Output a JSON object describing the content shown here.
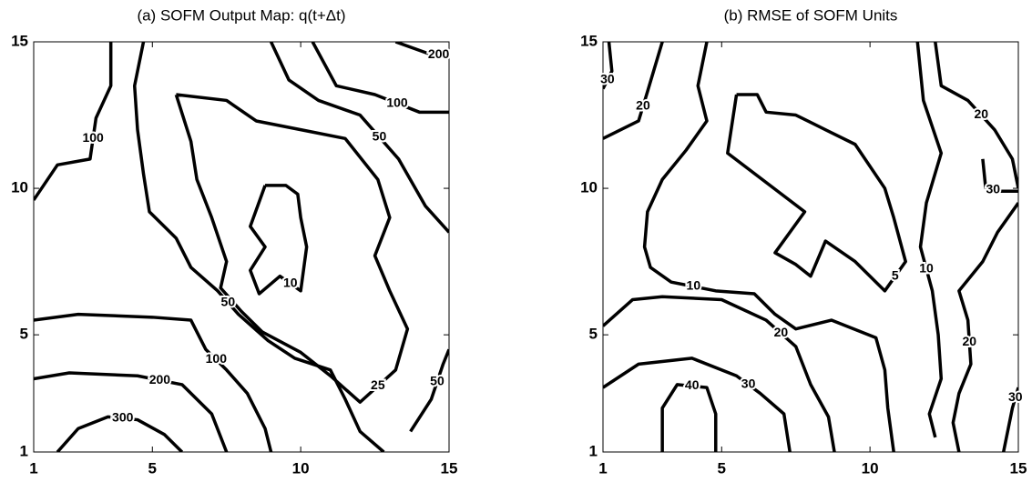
{
  "chart_data": [
    {
      "type": "contour",
      "title": "(a) SOFM Output Map: q(t+Δt)",
      "xlim": [
        1,
        15
      ],
      "ylim": [
        1,
        15
      ],
      "xticks": [
        1,
        5,
        10,
        15
      ],
      "yticks": [
        1,
        5,
        10,
        15
      ],
      "contours": [
        {
          "level": 100,
          "x": [
            1,
            1.8,
            2.9,
            3.1,
            3.6,
            3.6
          ],
          "y": [
            9.6,
            10.8,
            11,
            12.4,
            13.5,
            15
          ]
        },
        {
          "level": 50,
          "x": [
            4.7,
            4.4,
            4.5,
            4.7,
            4.9,
            5.8,
            6.3,
            7.2,
            7.9,
            8.9,
            9.8,
            11,
            11.5,
            12,
            12.8
          ],
          "y": [
            15,
            13.5,
            12,
            10.5,
            9.2,
            8.3,
            7.3,
            6.5,
            5.7,
            4.8,
            4.2,
            3.8,
            2.8,
            1.7,
            1
          ]
        },
        {
          "level": 50,
          "x": [
            9,
            9.6,
            10.6,
            12,
            13.3,
            14.2,
            15
          ],
          "y": [
            15,
            13.7,
            13,
            12.5,
            11,
            9.4,
            8.5
          ]
        },
        {
          "level": 100,
          "x": [
            10.4,
            11.2,
            12.5,
            14,
            15
          ],
          "y": [
            15,
            13.5,
            13.2,
            12.6,
            12.6
          ]
        },
        {
          "level": 200,
          "x": [
            13.2,
            14.3,
            15
          ],
          "y": [
            15,
            14.6,
            14.5
          ]
        },
        {
          "level": 25,
          "x": [
            5.8,
            7.5,
            8.5,
            10,
            11.5,
            12.6,
            13,
            12.5,
            13,
            13.6,
            13.2,
            12,
            11,
            10,
            8.7,
            8,
            7.3,
            7.5,
            7,
            6.5,
            6.3,
            5.8
          ],
          "y": [
            13.2,
            13,
            12.3,
            12,
            11.7,
            10.3,
            9,
            7.7,
            6.5,
            5.2,
            3.8,
            2.7,
            3.6,
            4.4,
            5.1,
            5.8,
            6.6,
            7.5,
            9,
            10.3,
            11.6,
            13.2
          ]
        },
        {
          "level": 10,
          "x": [
            8.8,
            9.5,
            9.9,
            10,
            10.2,
            10,
            9.3,
            8.6,
            8.3,
            8.8,
            8.3,
            8.8
          ],
          "y": [
            10.1,
            10.1,
            9.8,
            9,
            8,
            6.5,
            7,
            6.4,
            7.2,
            8,
            8.7,
            10.1
          ]
        },
        {
          "level": 100,
          "x": [
            1,
            2.5,
            5,
            6.3,
            6.8,
            7.5,
            8.2,
            8.8,
            9
          ],
          "y": [
            5.5,
            5.7,
            5.6,
            5.5,
            4.5,
            3.8,
            3,
            1.8,
            1
          ]
        },
        {
          "level": 200,
          "x": [
            1,
            2.2,
            4.5,
            6,
            7,
            7.5
          ],
          "y": [
            3.5,
            3.7,
            3.6,
            3.3,
            2.3,
            1
          ]
        },
        {
          "level": 300,
          "x": [
            1.8,
            2.5,
            3.5,
            4.5,
            5.4,
            6
          ],
          "y": [
            1,
            1.8,
            2.2,
            2.1,
            1.6,
            1
          ]
        },
        {
          "level": 50,
          "x": [
            13.7,
            14.4,
            14.8,
            15
          ],
          "y": [
            1.7,
            2.8,
            4,
            4.5
          ]
        }
      ]
    },
    {
      "type": "contour",
      "title": "(b) RMSE of SOFM Units",
      "xlim": [
        1,
        15
      ],
      "ylim": [
        1,
        15
      ],
      "xticks": [
        1,
        5,
        10,
        15
      ],
      "yticks": [
        1,
        5,
        10,
        15
      ],
      "contours": [
        {
          "level": 30,
          "x": [
            1.2,
            1.3,
            1
          ],
          "y": [
            15,
            14,
            13.4
          ]
        },
        {
          "level": 20,
          "x": [
            3,
            2.5,
            2.2,
            1
          ],
          "y": [
            15,
            13.3,
            12.3,
            11.7
          ]
        },
        {
          "level": 10,
          "x": [
            4.5,
            4.2,
            4.5,
            3.8,
            3,
            2.5,
            2.4,
            2.6,
            3.3,
            4.8,
            6.1,
            6.8,
            7.5,
            8.7,
            10.2,
            10.5,
            10.6,
            10.8
          ],
          "y": [
            15,
            13.5,
            12.3,
            11.3,
            10.3,
            9.2,
            8,
            7.3,
            6.8,
            6.5,
            6.4,
            5.7,
            5.2,
            5.5,
            4.9,
            3.8,
            2.5,
            1
          ]
        },
        {
          "level": 5,
          "x": [
            5.5,
            6.2,
            6.5,
            7.5,
            8.5,
            9.5,
            10.5,
            10.8,
            11.2,
            10.5,
            9.5,
            8.5,
            8,
            7.5,
            6.8,
            7.8,
            5.2,
            5.5
          ],
          "y": [
            13.2,
            13.2,
            12.6,
            12.5,
            12,
            11.5,
            10,
            9,
            7.5,
            6.5,
            7.5,
            8.2,
            7,
            7.4,
            7.8,
            9.2,
            11.2,
            13.2
          ]
        },
        {
          "level": 10,
          "x": [
            11.6,
            11.8,
            12.4,
            11.9,
            11.7,
            12.1,
            12.3,
            12.4,
            12,
            12.2
          ],
          "y": [
            15,
            13,
            11.2,
            9.5,
            8,
            6.5,
            5,
            3.5,
            2.3,
            1.5
          ]
        },
        {
          "level": 20,
          "x": [
            1,
            2,
            3,
            5,
            6.5,
            7.5,
            8,
            8.6,
            8.8
          ],
          "y": [
            5.3,
            6.2,
            6.3,
            6.2,
            5.5,
            4.6,
            3.3,
            2.2,
            1
          ]
        },
        {
          "level": 30,
          "x": [
            1,
            2.2,
            4,
            5.5,
            6.3,
            7.1,
            7.3
          ],
          "y": [
            3.2,
            4,
            4.2,
            3.6,
            3,
            2.3,
            1
          ]
        },
        {
          "level": 40,
          "x": [
            3,
            3,
            3.5,
            4.5,
            4.8,
            4.8
          ],
          "y": [
            1,
            2.5,
            3.3,
            3.2,
            2.3,
            1
          ]
        },
        {
          "level": 20,
          "x": [
            12.2,
            12.4,
            13.3,
            14.2,
            14.8,
            15
          ],
          "y": [
            15,
            13.5,
            13,
            12,
            11,
            10
          ]
        },
        {
          "level": 20,
          "x": [
            15,
            14.3,
            13.8,
            13,
            13.3,
            13.4,
            13,
            12.8,
            13
          ],
          "y": [
            9.5,
            8.5,
            7.5,
            6.5,
            5.5,
            4,
            3,
            2,
            1
          ]
        },
        {
          "level": 30,
          "x": [
            13.8,
            13.9,
            14.4,
            15
          ],
          "y": [
            11,
            10,
            9.9,
            9.9
          ]
        },
        {
          "level": 30,
          "x": [
            14.5,
            14.8,
            15
          ],
          "y": [
            1,
            2.5,
            3.2
          ]
        }
      ]
    }
  ]
}
